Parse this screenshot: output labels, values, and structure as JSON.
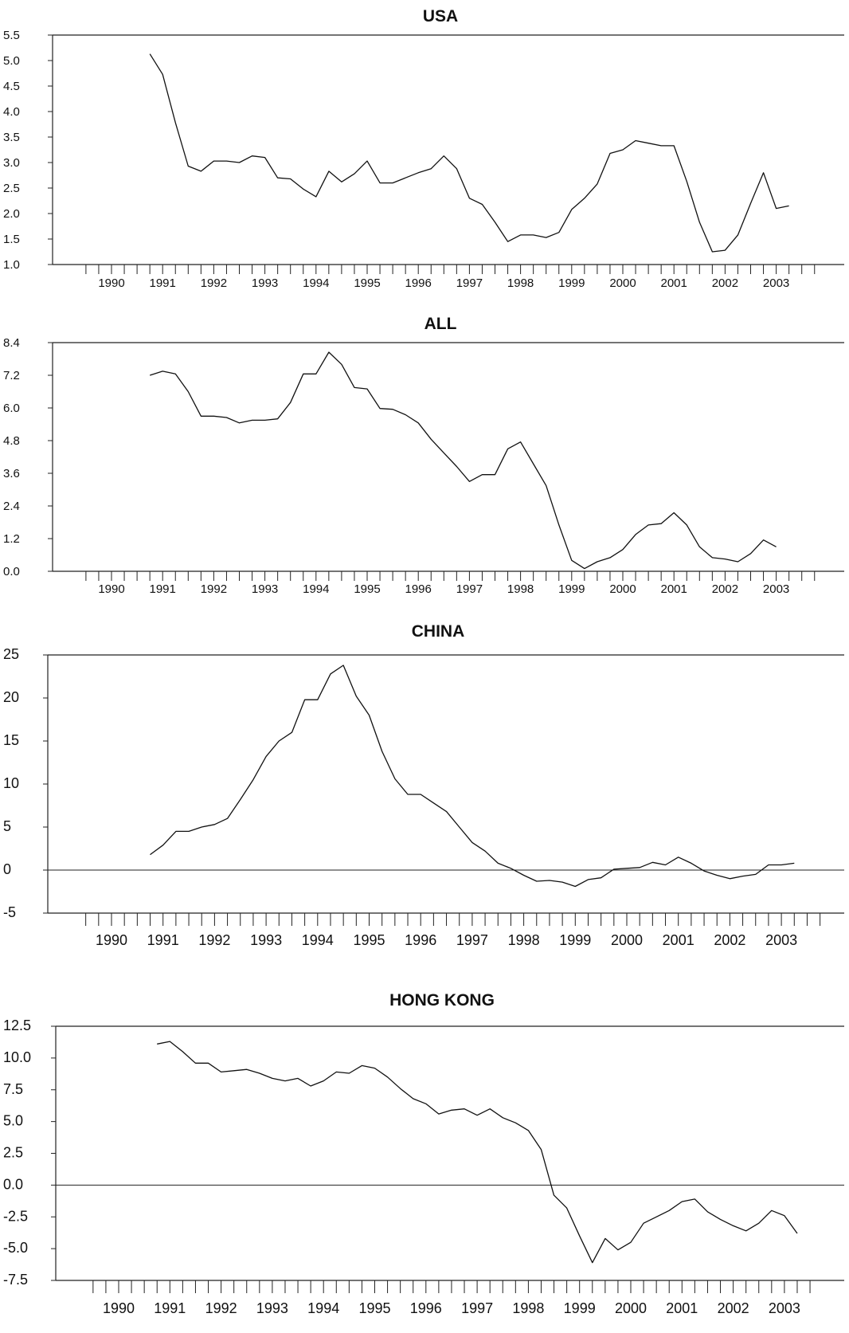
{
  "chart_data": [
    {
      "type": "line",
      "title": "USA",
      "ylim": [
        1.0,
        5.5
      ],
      "yticks": [
        "1.0",
        "1.5",
        "2.0",
        "2.5",
        "3.0",
        "3.5",
        "4.0",
        "4.5",
        "5.0",
        "5.5"
      ],
      "xticklabels": [
        "1990",
        "1991",
        "1992",
        "1993",
        "1994",
        "1995",
        "1996",
        "1997",
        "1998",
        "1999",
        "2000",
        "2001",
        "2002",
        "2003"
      ],
      "x_start": "1990Q4",
      "frequency": "quarterly",
      "zero_line": false,
      "series": [
        {
          "values": [
            5.13,
            4.73,
            3.78,
            2.93,
            2.83,
            3.03,
            3.03,
            3.0,
            3.13,
            3.1,
            2.7,
            2.68,
            2.48,
            2.33,
            2.83,
            2.62,
            2.78,
            3.03,
            2.6,
            2.6,
            2.7,
            2.8,
            2.88,
            3.13,
            2.88,
            2.3,
            2.18,
            1.83,
            1.45,
            1.58,
            1.58,
            1.53,
            1.63,
            2.08,
            2.3,
            2.58,
            3.18,
            3.25,
            3.43,
            3.38,
            3.33,
            3.33,
            2.63,
            1.83,
            1.25,
            1.28,
            1.58,
            2.2,
            2.8,
            2.1,
            2.15
          ]
        }
      ]
    },
    {
      "type": "line",
      "title": "ALL",
      "ylim": [
        0.0,
        8.4
      ],
      "yticks": [
        "0.0",
        "1.2",
        "2.4",
        "3.6",
        "4.8",
        "6.0",
        "7.2",
        "8.4"
      ],
      "xticklabels": [
        "1990",
        "1991",
        "1992",
        "1993",
        "1994",
        "1995",
        "1996",
        "1997",
        "1998",
        "1999",
        "2000",
        "2001",
        "2002",
        "2003"
      ],
      "x_start": "1990Q4",
      "frequency": "quarterly",
      "zero_line": false,
      "series": [
        {
          "values": [
            7.2,
            7.35,
            7.25,
            6.6,
            5.7,
            5.7,
            5.65,
            5.45,
            5.55,
            5.55,
            5.6,
            6.2,
            7.25,
            7.25,
            8.05,
            7.6,
            6.75,
            6.7,
            5.98,
            5.95,
            5.75,
            5.45,
            4.85,
            4.35,
            3.85,
            3.3,
            3.55,
            3.55,
            4.5,
            4.75,
            3.95,
            3.15,
            1.7,
            0.4,
            0.1,
            0.35,
            0.5,
            0.8,
            1.35,
            1.7,
            1.75,
            2.15,
            1.7,
            0.9,
            0.5,
            0.45,
            0.35,
            0.65,
            1.15,
            0.9
          ]
        }
      ]
    },
    {
      "type": "line",
      "title": "CHINA",
      "ylim": [
        -5,
        25
      ],
      "yticks": [
        "-5",
        "0",
        "5",
        "10",
        "15",
        "20",
        "25"
      ],
      "xticklabels": [
        "1990",
        "1991",
        "1992",
        "1993",
        "1994",
        "1995",
        "1996",
        "1997",
        "1998",
        "1999",
        "2000",
        "2001",
        "2002",
        "2003"
      ],
      "x_start": "1990Q4",
      "frequency": "quarterly",
      "zero_line": true,
      "series": [
        {
          "values": [
            1.8,
            2.9,
            4.5,
            4.5,
            5.0,
            5.3,
            6.0,
            8.2,
            10.5,
            13.2,
            15.0,
            16.0,
            19.8,
            19.8,
            22.8,
            23.8,
            20.2,
            18.0,
            13.8,
            10.6,
            8.8,
            8.8,
            7.8,
            6.8,
            5.0,
            3.2,
            2.2,
            0.8,
            0.2,
            -0.6,
            -1.3,
            -1.2,
            -1.4,
            -1.9,
            -1.1,
            -0.9,
            0.1,
            0.2,
            0.3,
            0.9,
            0.6,
            1.5,
            0.8,
            -0.1,
            -0.6,
            -1.0,
            -0.7,
            -0.5,
            0.6,
            0.6,
            0.8
          ]
        }
      ]
    },
    {
      "type": "line",
      "title": "HONG KONG",
      "ylim": [
        -7.5,
        12.5
      ],
      "yticks": [
        "-7.5",
        "-5.0",
        "-2.5",
        "0.0",
        "2.5",
        "5.0",
        "7.5",
        "10.0",
        "12.5"
      ],
      "xticklabels": [
        "1990",
        "1991",
        "1992",
        "1993",
        "1994",
        "1995",
        "1996",
        "1997",
        "1998",
        "1999",
        "2000",
        "2001",
        "2002",
        "2003"
      ],
      "x_start": "1990Q4",
      "frequency": "quarterly",
      "zero_line": true,
      "series": [
        {
          "values": [
            11.1,
            11.3,
            10.5,
            9.6,
            9.6,
            8.9,
            9.0,
            9.1,
            8.8,
            8.4,
            8.2,
            8.4,
            7.8,
            8.2,
            8.9,
            8.8,
            9.4,
            9.2,
            8.5,
            7.6,
            6.8,
            6.4,
            5.6,
            5.9,
            6.0,
            5.5,
            6.0,
            5.3,
            4.9,
            4.3,
            2.8,
            -0.8,
            -1.8,
            -4.0,
            -6.1,
            -4.2,
            -5.1,
            -4.5,
            -3.0,
            -2.5,
            -2.0,
            -1.3,
            -1.1,
            -2.1,
            -2.7,
            -3.2,
            -3.6,
            -3.0,
            -2.0,
            -2.4,
            -3.8
          ]
        }
      ]
    }
  ]
}
